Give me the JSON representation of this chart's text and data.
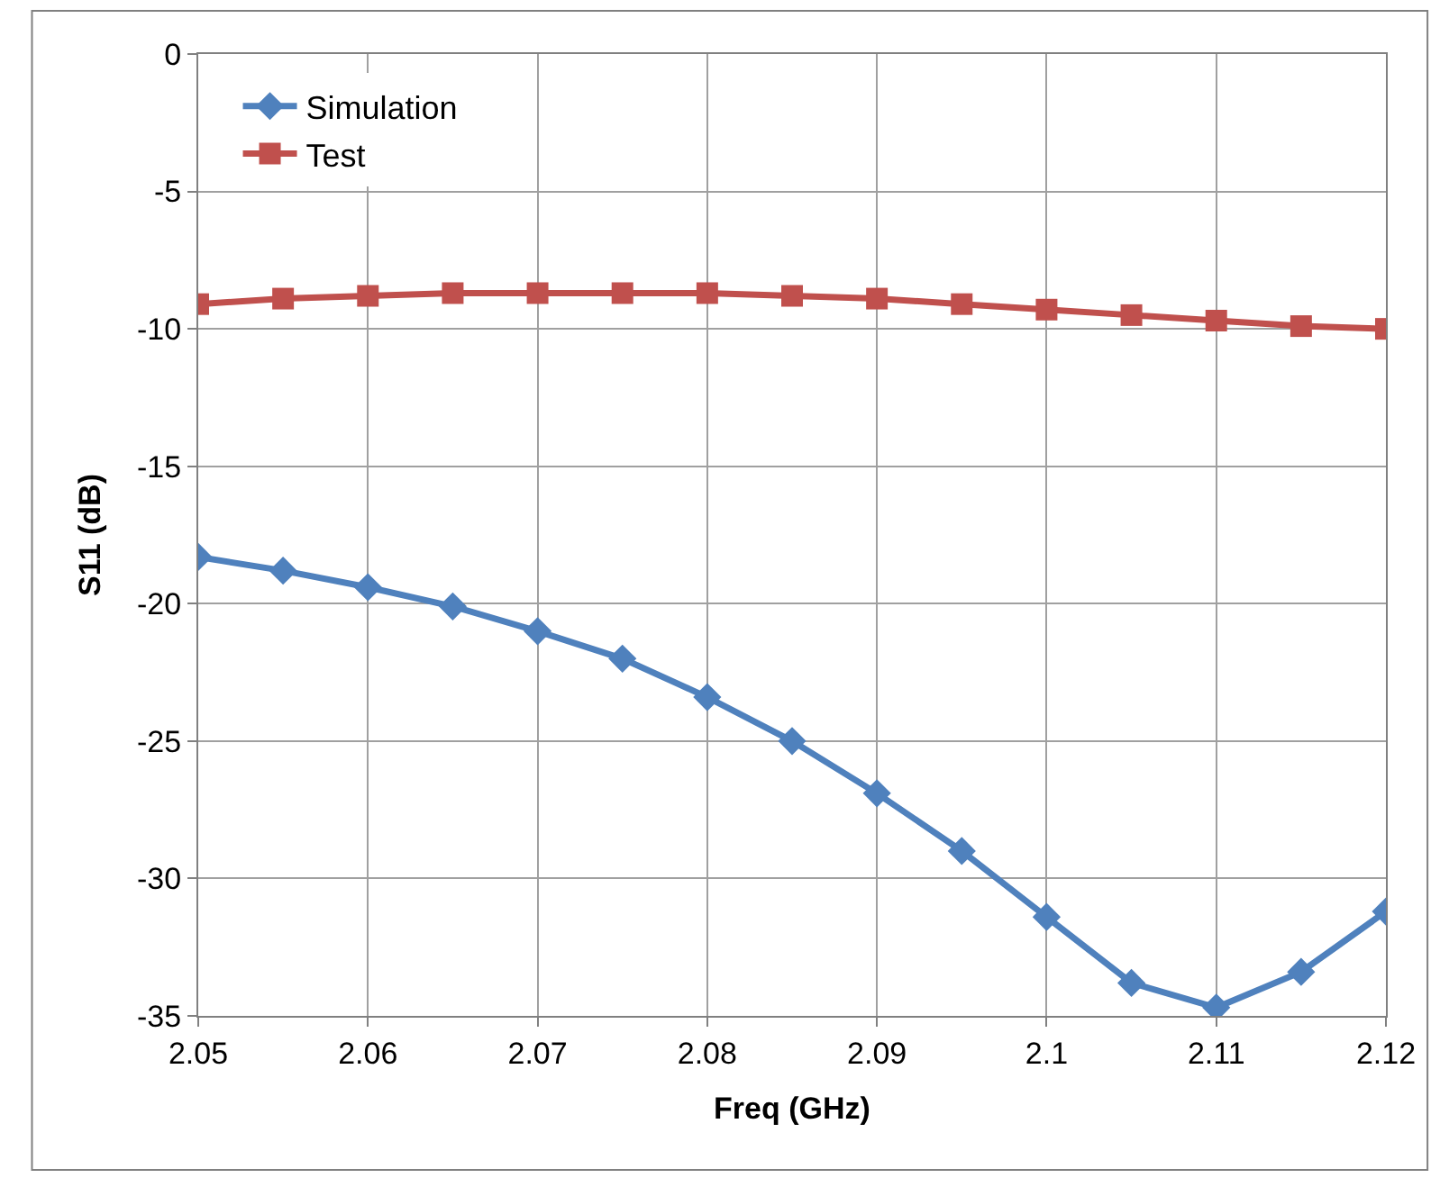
{
  "chart_data": {
    "type": "line",
    "xlabel": "Freq (GHz)",
    "ylabel": "S11 (dB)",
    "x": [
      2.05,
      2.055,
      2.06,
      2.065,
      2.07,
      2.075,
      2.08,
      2.085,
      2.09,
      2.095,
      2.1,
      2.105,
      2.11,
      2.115,
      2.12
    ],
    "series": [
      {
        "name": "Simulation",
        "color": "#4f81bd",
        "marker": "diamond",
        "values": [
          -18.3,
          -18.8,
          -19.4,
          -20.1,
          -21.0,
          -22.0,
          -23.4,
          -25.0,
          -26.9,
          -29.0,
          -31.4,
          -33.8,
          -34.7,
          -33.4,
          -31.2
        ]
      },
      {
        "name": "Test",
        "color": "#c0504d",
        "marker": "square",
        "values": [
          -9.1,
          -8.9,
          -8.8,
          -8.7,
          -8.7,
          -8.7,
          -8.7,
          -8.8,
          -8.9,
          -9.1,
          -9.3,
          -9.5,
          -9.7,
          -9.9,
          -10.0
        ]
      }
    ],
    "xlim": [
      2.05,
      2.12
    ],
    "xticks": [
      2.05,
      2.06,
      2.07,
      2.08,
      2.09,
      2.1,
      2.11,
      2.12
    ],
    "ylim": [
      -35,
      0
    ],
    "yticks": [
      -35,
      -30,
      -25,
      -20,
      -15,
      -10,
      -5,
      0
    ],
    "grid": true,
    "legend": "top left",
    "line_style": "solid"
  }
}
